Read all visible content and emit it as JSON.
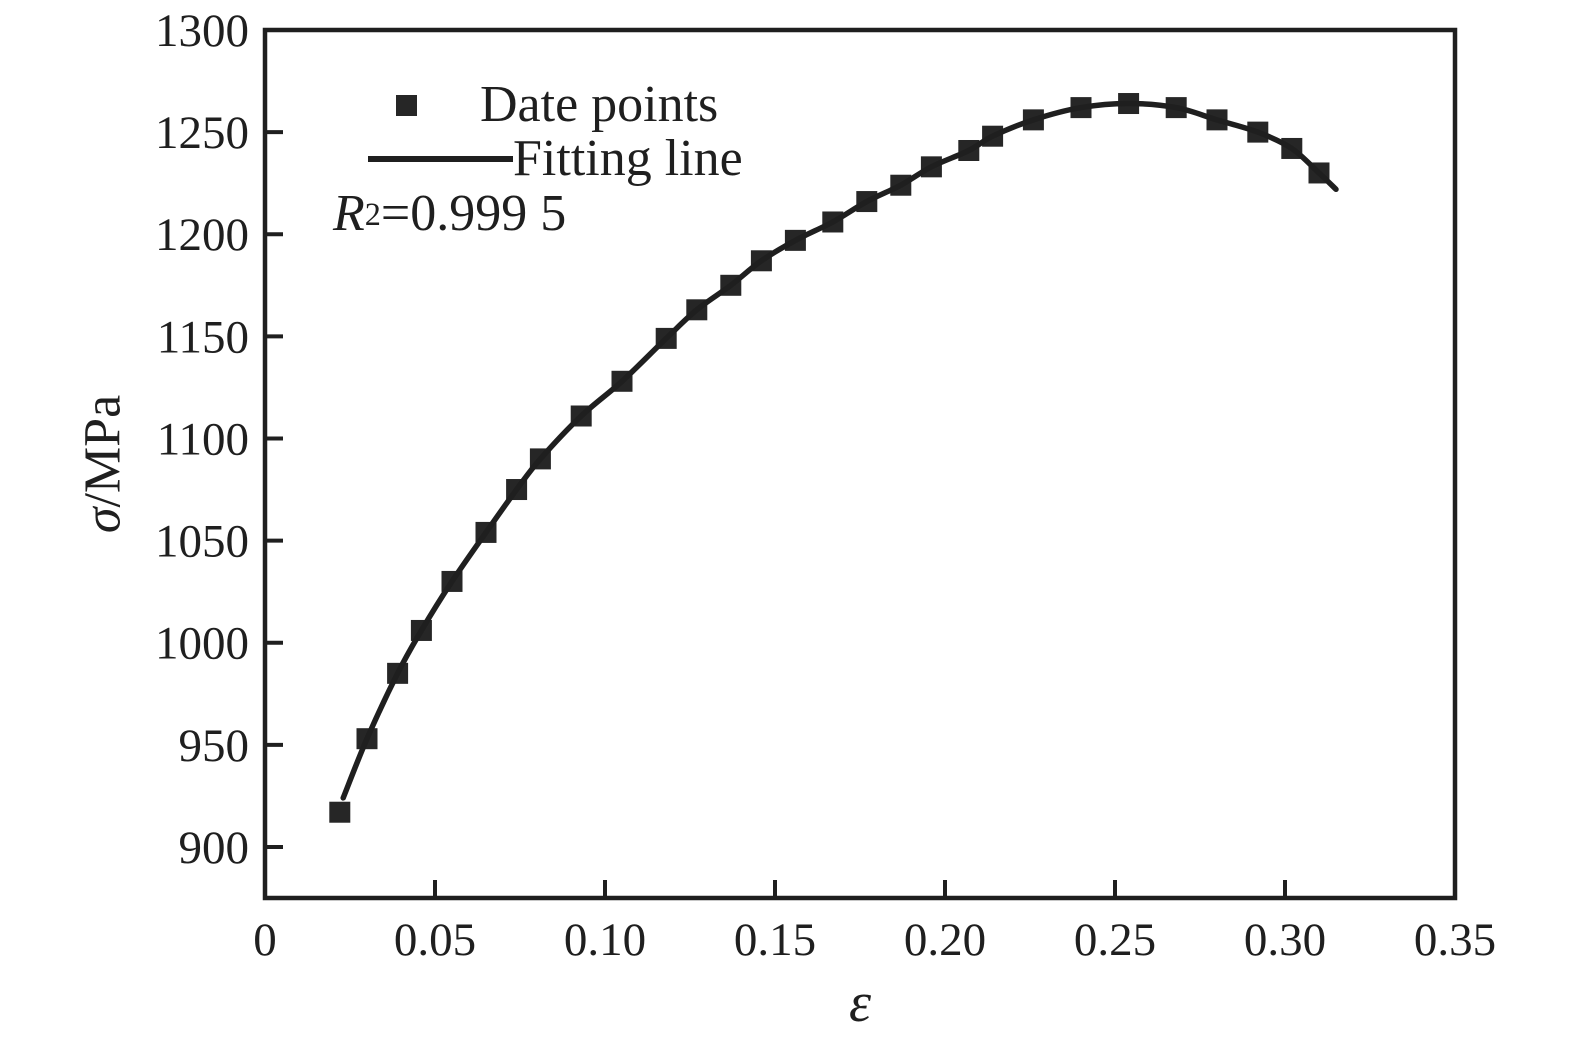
{
  "figure": {
    "background_color": "#ffffff",
    "ink_color": "#1f1f1f",
    "marker_color": "#262626"
  },
  "chart_data": {
    "type": "scatter",
    "title": "",
    "xlabel": "ε",
    "ylabel": "σ/MPa",
    "ylabel_symbol": "σ",
    "ylabel_unit": "/MPa",
    "xlim": [
      0,
      0.35
    ],
    "ylim": [
      875,
      1300
    ],
    "grid": false,
    "legend_position": "top-left-inside",
    "x_tick_values": [
      0,
      0.05,
      0.1,
      0.15,
      0.2,
      0.25,
      0.3,
      0.35
    ],
    "x_tick_labels": [
      "0",
      "0.05",
      "0.10",
      "0.15",
      "0.20",
      "0.25",
      "0.30",
      "0.35"
    ],
    "y_tick_values": [
      900,
      950,
      1000,
      1050,
      1100,
      1150,
      1200,
      1250,
      1300
    ],
    "y_tick_labels": [
      "900",
      "950",
      "1000",
      "1050",
      "1100",
      "1150",
      "1200",
      "1250",
      "1300"
    ],
    "annotation": {
      "text": "R²=0.999 5",
      "r": "R",
      "sup": "2",
      "value": "=0.999 5"
    },
    "series": [
      {
        "name": "Date points",
        "kind": "scatter",
        "marker": "square",
        "color": "#262626",
        "points": [
          [
            0.022,
            917
          ],
          [
            0.03,
            953
          ],
          [
            0.039,
            985
          ],
          [
            0.046,
            1006
          ],
          [
            0.055,
            1030
          ],
          [
            0.065,
            1054
          ],
          [
            0.074,
            1075
          ],
          [
            0.081,
            1090
          ],
          [
            0.093,
            1111
          ],
          [
            0.105,
            1128
          ],
          [
            0.118,
            1149
          ],
          [
            0.127,
            1163
          ],
          [
            0.137,
            1175
          ],
          [
            0.146,
            1187
          ],
          [
            0.156,
            1197
          ],
          [
            0.167,
            1206
          ],
          [
            0.177,
            1216
          ],
          [
            0.187,
            1224
          ],
          [
            0.196,
            1233
          ],
          [
            0.207,
            1241
          ],
          [
            0.214,
            1248
          ],
          [
            0.226,
            1256
          ],
          [
            0.24,
            1262
          ],
          [
            0.254,
            1264
          ],
          [
            0.268,
            1262
          ],
          [
            0.28,
            1256
          ],
          [
            0.292,
            1250
          ],
          [
            0.302,
            1242
          ],
          [
            0.31,
            1230
          ]
        ]
      },
      {
        "name": "Fitting line",
        "kind": "line",
        "color": "#1f1f1f",
        "points": [
          [
            0.023,
            924
          ],
          [
            0.03,
            953
          ],
          [
            0.039,
            985
          ],
          [
            0.046,
            1006
          ],
          [
            0.055,
            1030
          ],
          [
            0.065,
            1054
          ],
          [
            0.074,
            1075
          ],
          [
            0.081,
            1090
          ],
          [
            0.093,
            1111
          ],
          [
            0.105,
            1128
          ],
          [
            0.118,
            1149
          ],
          [
            0.127,
            1163
          ],
          [
            0.137,
            1175
          ],
          [
            0.146,
            1187
          ],
          [
            0.156,
            1197
          ],
          [
            0.167,
            1206
          ],
          [
            0.177,
            1216
          ],
          [
            0.187,
            1224
          ],
          [
            0.196,
            1233
          ],
          [
            0.207,
            1241
          ],
          [
            0.214,
            1248
          ],
          [
            0.226,
            1256
          ],
          [
            0.24,
            1262
          ],
          [
            0.254,
            1264
          ],
          [
            0.268,
            1262
          ],
          [
            0.28,
            1256
          ],
          [
            0.292,
            1250
          ],
          [
            0.302,
            1242
          ],
          [
            0.31,
            1230
          ],
          [
            0.315,
            1222
          ]
        ]
      }
    ]
  }
}
